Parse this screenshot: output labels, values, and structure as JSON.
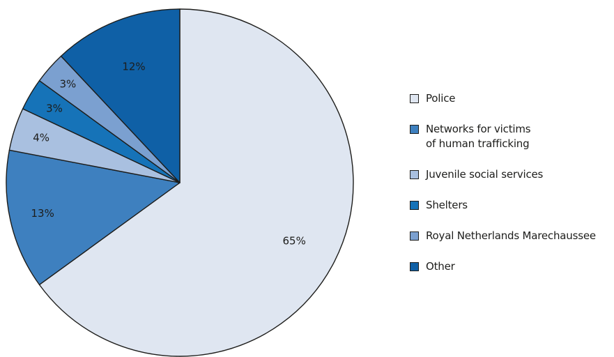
{
  "chart_data": {
    "type": "pie",
    "start_angle_deg": 0,
    "direction": "clockwise",
    "slices": [
      {
        "label": "Police",
        "value": 65,
        "value_label": "65%",
        "color": "#dfe6f1"
      },
      {
        "label": "Networks for victims\nof human trafficking",
        "value": 13,
        "value_label": "13%",
        "color": "#3e80bf"
      },
      {
        "label": "Juvenile social services",
        "value": 4,
        "value_label": "4%",
        "color": "#a9c0e0"
      },
      {
        "label": "Shelters",
        "value": 3,
        "value_label": "3%",
        "color": "#1673b8"
      },
      {
        "label": "Royal Netherlands Marechaussee",
        "value": 3,
        "value_label": "3%",
        "color": "#7ba0d0"
      },
      {
        "label": "Other",
        "value": 12,
        "value_label": "12%",
        "color": "#0f60a6"
      }
    ],
    "legend_position": "right",
    "stroke_color": "#1d1d1b"
  }
}
